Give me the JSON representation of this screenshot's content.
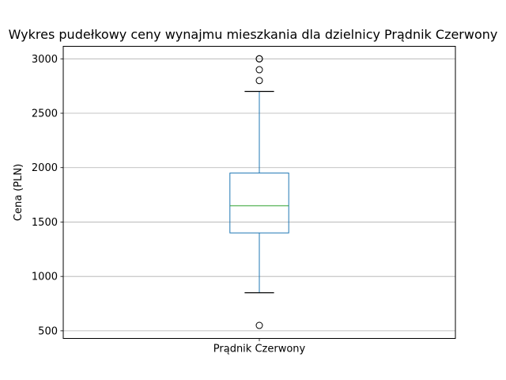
{
  "chart_data": {
    "type": "box",
    "title": "Wykres pudełkowy ceny wynajmu mieszkania dla dzielnicy  Prądnik Czerwony",
    "xlabel": "",
    "ylabel": "Cena (PLN)",
    "categories": [
      "Prądnik Czerwony"
    ],
    "ylim": [
      430,
      3115
    ],
    "yticks": [
      500,
      1000,
      1500,
      2000,
      2500,
      3000
    ],
    "ytick_labels": [
      "500",
      "1000",
      "1500",
      "2000",
      "2500",
      "3000"
    ],
    "grid": "horizontal",
    "boxes": [
      {
        "category": "Prądnik Czerwony",
        "whisker_low": 850,
        "q1": 1400,
        "median": 1650,
        "q3": 1950,
        "whisker_high": 2700,
        "outliers": [
          550,
          2800,
          2900,
          3000,
          3000
        ]
      }
    ],
    "colors": {
      "box": "#1f77b4",
      "median": "#2ca02c",
      "cap": "#000000",
      "grid": "#b0b0b0",
      "outlier": "#000000"
    }
  }
}
